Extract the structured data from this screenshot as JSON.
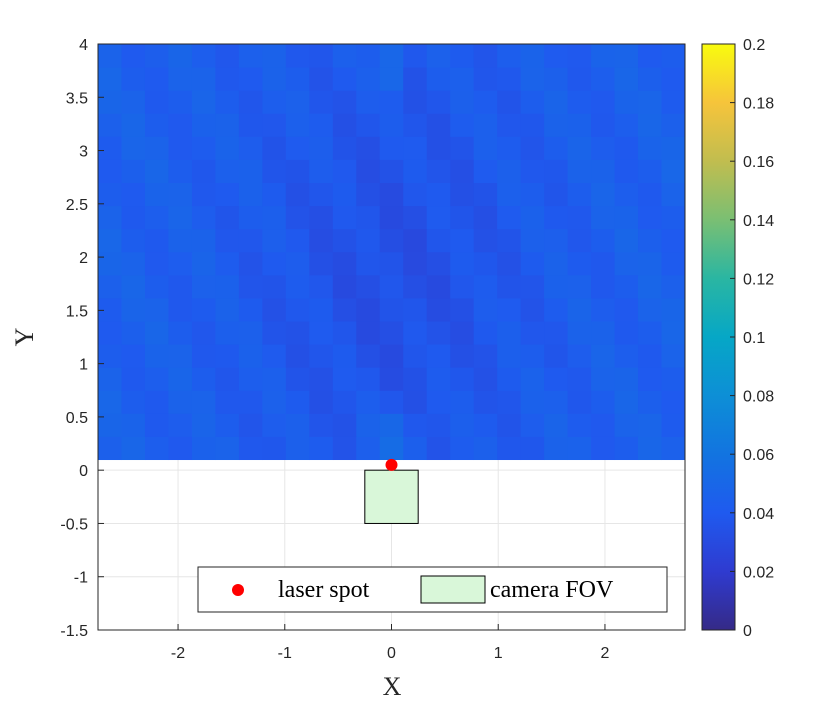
{
  "chart_data": {
    "type": "heatmap",
    "xlabel": "X",
    "ylabel": "Y",
    "xlim": [
      -2.75,
      2.75
    ],
    "ylim": [
      -1.5,
      4
    ],
    "xticks": [
      "-2",
      "-1",
      "0",
      "1",
      "2"
    ],
    "xtick_values": [
      -2,
      -1,
      0,
      1,
      2
    ],
    "yticks": [
      "-1.5",
      "-1",
      "-0.5",
      "0",
      "0.5",
      "1",
      "1.5",
      "2",
      "2.5",
      "3",
      "3.5",
      "4"
    ],
    "ytick_values": [
      -1.5,
      -1,
      -0.5,
      0,
      0.5,
      1,
      1.5,
      2,
      2.5,
      3,
      3.5,
      4
    ],
    "grid": true,
    "colormap": "parula",
    "heatmap": {
      "x_range": [
        -2.75,
        2.75
      ],
      "y_range": [
        0.1,
        4.0
      ],
      "x_cells": 25,
      "y_cells": 18,
      "value_min": 0.025,
      "value_max": 0.06,
      "description_values": "error values between about 0.02 and 0.06"
    },
    "colorbar": {
      "min": 0,
      "max": 0.2,
      "ticks": [
        "0",
        "0.02",
        "0.04",
        "0.06",
        "0.08",
        "0.1",
        "0.12",
        "0.14",
        "0.16",
        "0.18",
        "0.2"
      ],
      "tick_values": [
        0,
        0.02,
        0.04,
        0.06,
        0.08,
        0.1,
        0.12,
        0.14,
        0.16,
        0.18,
        0.2
      ]
    },
    "laser_spot": {
      "x": 0,
      "y": 0.05,
      "color": "#ff0000"
    },
    "camera_fov": {
      "x": [
        -0.25,
        0.25
      ],
      "y": [
        -0.5,
        0.0
      ],
      "fill": "#d9f7d9",
      "stroke": "#000000"
    },
    "legend": {
      "placement": "bottom-right",
      "entries": [
        {
          "label": "laser spot",
          "marker": "dot"
        },
        {
          "label": "camera FOV",
          "marker": "rect"
        }
      ]
    }
  }
}
